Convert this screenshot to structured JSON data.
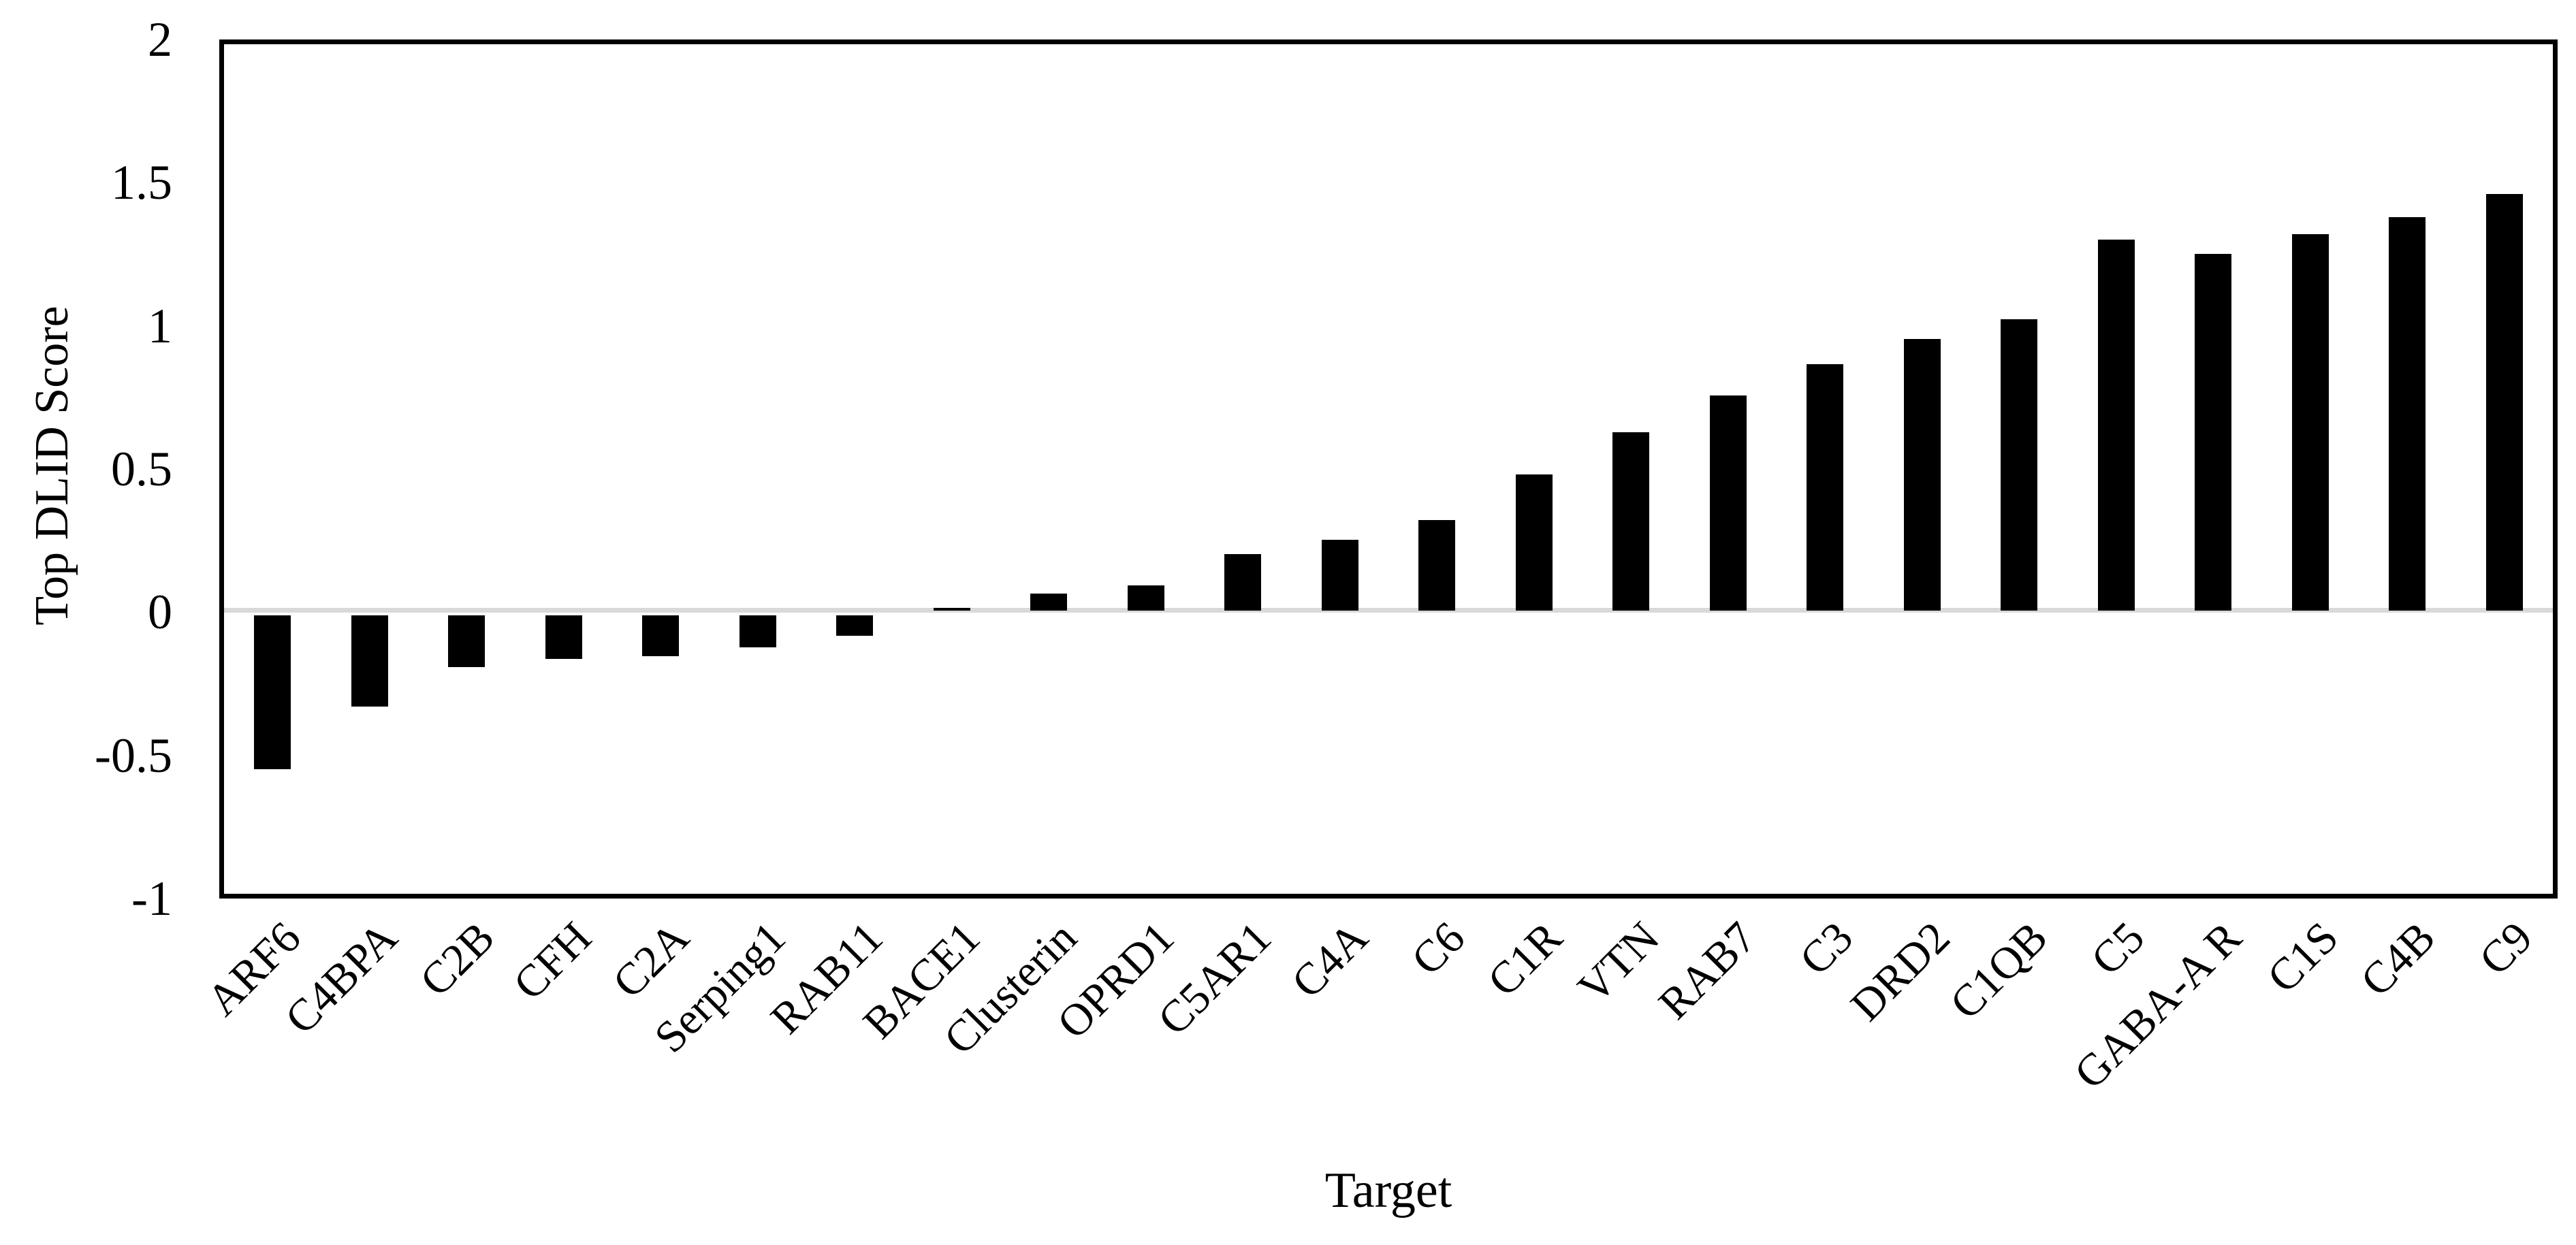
{
  "chart_data": {
    "type": "bar",
    "title": "",
    "xlabel": "Target",
    "ylabel": "Top DLID Score",
    "categories": [
      "ARF6",
      "C4BPA",
      "C2B",
      "CFH",
      "C2A",
      "Serping1",
      "RAB11",
      "BACE1",
      "Clusterin",
      "OPRD1",
      "C5AR1",
      "C4A",
      "C6",
      "C1R",
      "VTN",
      "RAB7",
      "C3",
      "DRD2",
      "C1QB",
      "C5",
      "GABA-A R",
      "C1S",
      "C4B",
      "C9"
    ],
    "values": [
      -0.56,
      -0.34,
      -0.2,
      -0.17,
      -0.16,
      -0.13,
      -0.09,
      0.01,
      0.06,
      0.09,
      0.2,
      0.25,
      0.32,
      0.48,
      0.63,
      0.76,
      0.87,
      0.96,
      1.03,
      1.31,
      1.26,
      1.33,
      1.39,
      1.47
    ],
    "ylim": [
      -1,
      2
    ],
    "ytick_values": [
      2,
      1.5,
      1,
      0.5,
      0,
      -0.5,
      -1
    ],
    "ytick_labels": [
      "2",
      "1.5",
      "1",
      "0.5",
      "0",
      "-0.5",
      "-1"
    ],
    "x_label_rotation_deg": 45,
    "bar_color": "#000000",
    "zero_line_color": "#d9d9d9",
    "frame_color": "#000000",
    "background_color": "#ffffff",
    "grid": "zero-line-only",
    "legend": "none"
  }
}
